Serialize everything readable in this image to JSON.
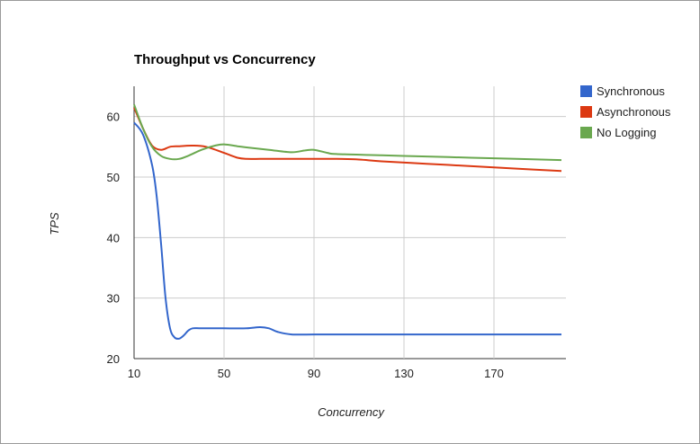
{
  "chart_data": {
    "type": "line",
    "title": "Throughput vs Concurrency",
    "xlabel": "Concurrency",
    "ylabel": "TPS",
    "xlim": [
      10,
      200
    ],
    "ylim": [
      20,
      65
    ],
    "xticks": [
      "10",
      "50",
      "90",
      "130",
      "170"
    ],
    "yticks": [
      "20",
      "30",
      "40",
      "50",
      "60"
    ],
    "grid": true,
    "legend_position": "right",
    "series": [
      {
        "name": "Synchronous",
        "color": "#3366cc",
        "x": [
          10,
          14,
          18,
          20,
          22,
          24,
          26,
          28,
          30,
          32,
          34,
          36,
          40,
          50,
          60,
          66,
          70,
          74,
          80,
          90,
          100,
          120,
          140,
          160,
          180,
          200
        ],
        "y": [
          59,
          57,
          52,
          47,
          39,
          30,
          25,
          23.5,
          23.3,
          23.8,
          24.6,
          25,
          25,
          25,
          25,
          25.2,
          25,
          24.4,
          24,
          24,
          24,
          24,
          24,
          24,
          24,
          24
        ]
      },
      {
        "name": "Asynchronous",
        "color": "#dc3912",
        "x": [
          10,
          14,
          18,
          22,
          26,
          30,
          36,
          42,
          50,
          56,
          60,
          66,
          70,
          80,
          90,
          100,
          110,
          120,
          140,
          160,
          180,
          200
        ],
        "y": [
          61.5,
          58,
          55.2,
          54.5,
          55,
          55.1,
          55.2,
          55,
          54,
          53.2,
          53,
          53,
          53,
          53,
          53,
          53,
          52.9,
          52.6,
          52.2,
          51.8,
          51.4,
          51
        ]
      },
      {
        "name": "No Logging",
        "color": "#6aa84f",
        "x": [
          10,
          14,
          18,
          22,
          26,
          30,
          34,
          40,
          46,
          50,
          56,
          60,
          70,
          80,
          86,
          90,
          96,
          100,
          120,
          140,
          160,
          180,
          200
        ],
        "y": [
          62,
          58,
          55,
          53.5,
          53,
          53,
          53.5,
          54.5,
          55.2,
          55.4,
          55.1,
          54.9,
          54.5,
          54.1,
          54.4,
          54.5,
          54,
          53.8,
          53.6,
          53.4,
          53.2,
          53,
          52.8
        ]
      }
    ]
  }
}
